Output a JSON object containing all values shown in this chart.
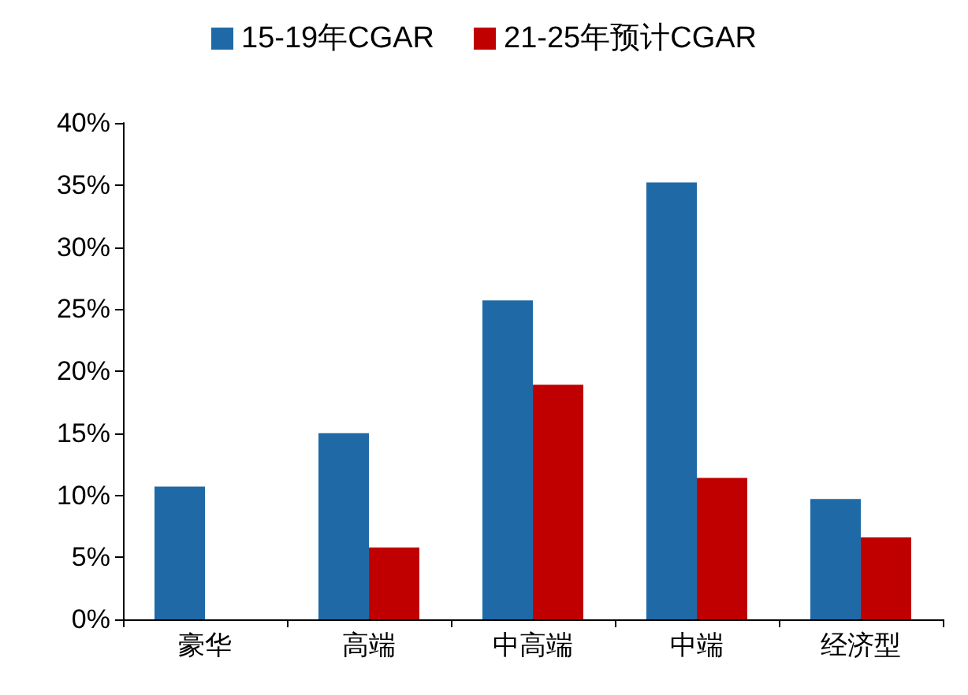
{
  "chart_data": {
    "type": "bar",
    "categories": [
      "豪华",
      "高端",
      "中高端",
      "中端",
      "经济型"
    ],
    "series": [
      {
        "name": "15-19年CGAR",
        "color": "#1f6aa6",
        "values": [
          10.7,
          15.0,
          25.7,
          35.2,
          9.7
        ]
      },
      {
        "name": "21-25年预计CGAR",
        "color": "#c00000",
        "values": [
          null,
          5.8,
          18.9,
          11.4,
          6.6
        ]
      }
    ],
    "ylim": [
      0,
      40
    ],
    "yticks": [
      {
        "value": 0,
        "label": "0%"
      },
      {
        "value": 5,
        "label": "5%"
      },
      {
        "value": 10,
        "label": "10%"
      },
      {
        "value": 15,
        "label": "15%"
      },
      {
        "value": 20,
        "label": "20%"
      },
      {
        "value": 25,
        "label": "25%"
      },
      {
        "value": 30,
        "label": "30%"
      },
      {
        "value": 35,
        "label": "35%"
      },
      {
        "value": 40,
        "label": "40%"
      }
    ],
    "grid": false,
    "legend": "top"
  }
}
